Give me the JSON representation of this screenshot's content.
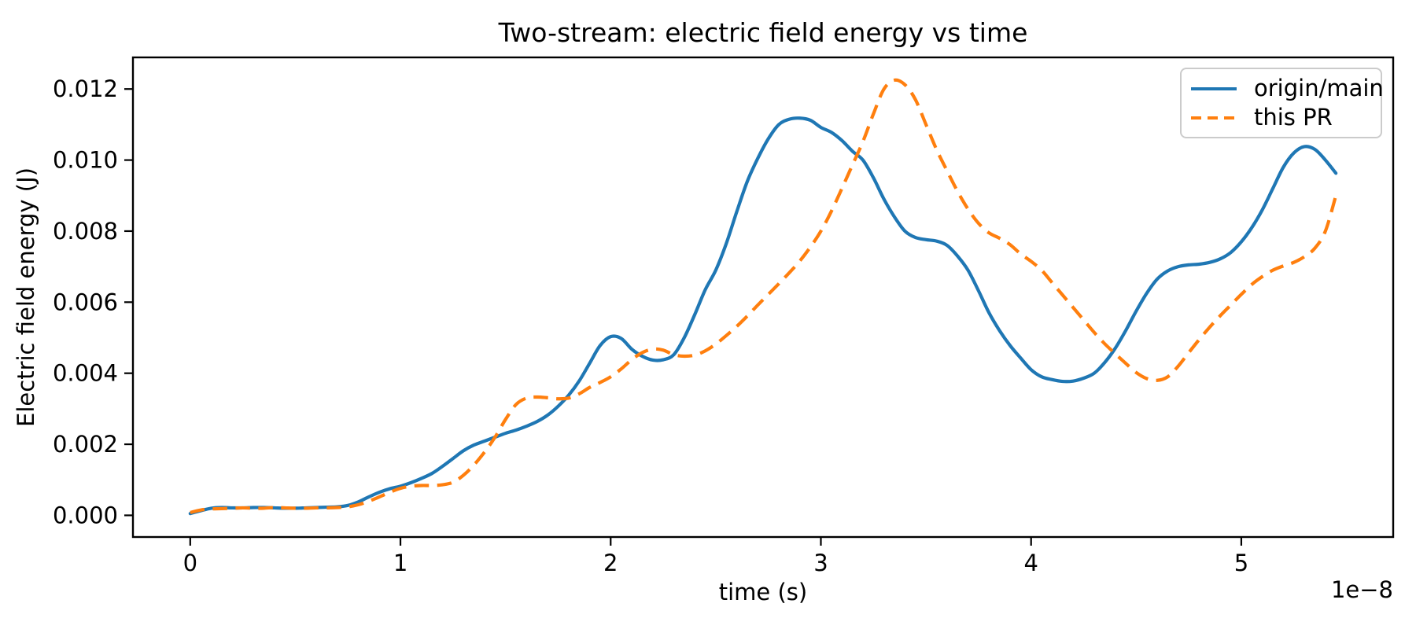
{
  "chart_data": {
    "type": "line",
    "title": "Two-stream: electric field energy vs time",
    "xlabel": "time (s)",
    "ylabel": "Electric field energy (J)",
    "x_offset_text": "1e−8",
    "x_units": "1e-8 s",
    "grid": false,
    "legend": {
      "location": "upper right"
    },
    "xlim": [
      -0.2725,
      5.7225
    ],
    "ylim": [
      -0.00061,
      0.01289
    ],
    "xticks": {
      "values": [
        0,
        1,
        2,
        3,
        4,
        5
      ],
      "labels": [
        "0",
        "1",
        "2",
        "3",
        "4",
        "5"
      ]
    },
    "yticks": {
      "values": [
        0.0,
        0.002,
        0.004,
        0.006,
        0.008,
        0.01,
        0.012
      ],
      "labels": [
        "0.000",
        "0.002",
        "0.004",
        "0.006",
        "0.008",
        "0.010",
        "0.012"
      ]
    },
    "x": [
      0,
      0.05,
      0.1,
      0.15,
      0.2,
      0.25,
      0.3,
      0.35,
      0.4,
      0.45,
      0.5,
      0.55,
      0.6,
      0.65,
      0.7,
      0.75,
      0.8,
      0.85,
      0.9,
      0.95,
      1,
      1.05,
      1.1,
      1.15,
      1.2,
      1.25,
      1.3,
      1.35,
      1.4,
      1.45,
      1.5,
      1.55,
      1.6,
      1.65,
      1.7,
      1.75,
      1.8,
      1.85,
      1.9,
      1.95,
      2,
      2.05,
      2.1,
      2.15,
      2.2,
      2.25,
      2.3,
      2.35,
      2.4,
      2.45,
      2.5,
      2.55,
      2.6,
      2.65,
      2.7,
      2.75,
      2.8,
      2.85,
      2.9,
      2.95,
      3,
      3.05,
      3.1,
      3.15,
      3.2,
      3.25,
      3.3,
      3.35,
      3.4,
      3.45,
      3.5,
      3.55,
      3.6,
      3.65,
      3.7,
      3.75,
      3.8,
      3.85,
      3.9,
      3.95,
      4,
      4.05,
      4.1,
      4.15,
      4.2,
      4.25,
      4.3,
      4.35,
      4.4,
      4.45,
      4.5,
      4.55,
      4.6,
      4.65,
      4.7,
      4.75,
      4.8,
      4.85,
      4.9,
      4.95,
      5,
      5.05,
      5.1,
      5.15,
      5.2,
      5.25,
      5.3,
      5.35,
      5.4,
      5.45
    ],
    "series": [
      {
        "name": "origin/main",
        "color": "#1f77b4",
        "linestyle": "solid",
        "values": [
          5e-05,
          0.00013,
          0.0002,
          0.00022,
          0.00021,
          0.00021,
          0.00022,
          0.00022,
          0.00021,
          0.0002,
          0.0002,
          0.00021,
          0.00022,
          0.00023,
          0.00024,
          0.00028,
          0.00038,
          0.00052,
          0.00065,
          0.00075,
          0.00082,
          0.00092,
          0.00104,
          0.00118,
          0.00138,
          0.0016,
          0.00182,
          0.00198,
          0.00209,
          0.0022,
          0.00231,
          0.0024,
          0.00251,
          0.00264,
          0.00282,
          0.00307,
          0.00338,
          0.00378,
          0.00428,
          0.00478,
          0.00503,
          0.00498,
          0.00468,
          0.00448,
          0.00437,
          0.00438,
          0.00452,
          0.005,
          0.00565,
          0.00635,
          0.0069,
          0.00765,
          0.00855,
          0.0094,
          0.01005,
          0.0106,
          0.011,
          0.01115,
          0.01118,
          0.01112,
          0.01092,
          0.01078,
          0.01055,
          0.01025,
          0.01,
          0.0095,
          0.0089,
          0.0084,
          0.008,
          0.00782,
          0.00776,
          0.00772,
          0.0076,
          0.0073,
          0.0069,
          0.00632,
          0.0057,
          0.0052,
          0.00478,
          0.00443,
          0.0041,
          0.0039,
          0.00382,
          0.00377,
          0.00378,
          0.00386,
          0.004,
          0.0043,
          0.0047,
          0.0052,
          0.00575,
          0.00625,
          0.00665,
          0.00688,
          0.007,
          0.00705,
          0.00707,
          0.00712,
          0.00722,
          0.0074,
          0.0077,
          0.0081,
          0.0086,
          0.0092,
          0.0098,
          0.0102,
          0.01038,
          0.0103,
          0.01,
          0.00963
        ]
      },
      {
        "name": "this PR",
        "color": "#ff7f0e",
        "linestyle": "dashed",
        "values": [
          8e-05,
          0.00015,
          0.00018,
          0.00019,
          0.0002,
          0.00021,
          0.0002,
          0.0002,
          0.00022,
          0.00021,
          0.0002,
          0.0002,
          0.00021,
          0.00021,
          0.00022,
          0.00024,
          0.0003,
          0.0004,
          0.00052,
          0.00065,
          0.00076,
          0.00082,
          0.00084,
          0.00084,
          0.00086,
          0.00093,
          0.00113,
          0.00142,
          0.00178,
          0.0022,
          0.0027,
          0.00312,
          0.0033,
          0.00333,
          0.00331,
          0.00328,
          0.0033,
          0.00342,
          0.0036,
          0.00374,
          0.0039,
          0.00412,
          0.00438,
          0.00458,
          0.00468,
          0.00465,
          0.00452,
          0.00448,
          0.00451,
          0.00463,
          0.00482,
          0.00506,
          0.00532,
          0.00561,
          0.00592,
          0.00622,
          0.00652,
          0.00683,
          0.00716,
          0.00755,
          0.008,
          0.00856,
          0.0092,
          0.00986,
          0.01052,
          0.0113,
          0.012,
          0.01225,
          0.01212,
          0.0117,
          0.011,
          0.0103,
          0.0097,
          0.00912,
          0.00862,
          0.00822,
          0.00795,
          0.0078,
          0.00762,
          0.00736,
          0.00715,
          0.0069,
          0.00655,
          0.0062,
          0.00585,
          0.0055,
          0.00515,
          0.00483,
          0.00455,
          0.00428,
          0.00402,
          0.00385,
          0.0038,
          0.0039,
          0.0042,
          0.00458,
          0.00495,
          0.0053,
          0.00562,
          0.00592,
          0.00622,
          0.0065,
          0.00672,
          0.0069,
          0.00702,
          0.00712,
          0.00728,
          0.00752,
          0.008,
          0.009
        ]
      }
    ]
  }
}
